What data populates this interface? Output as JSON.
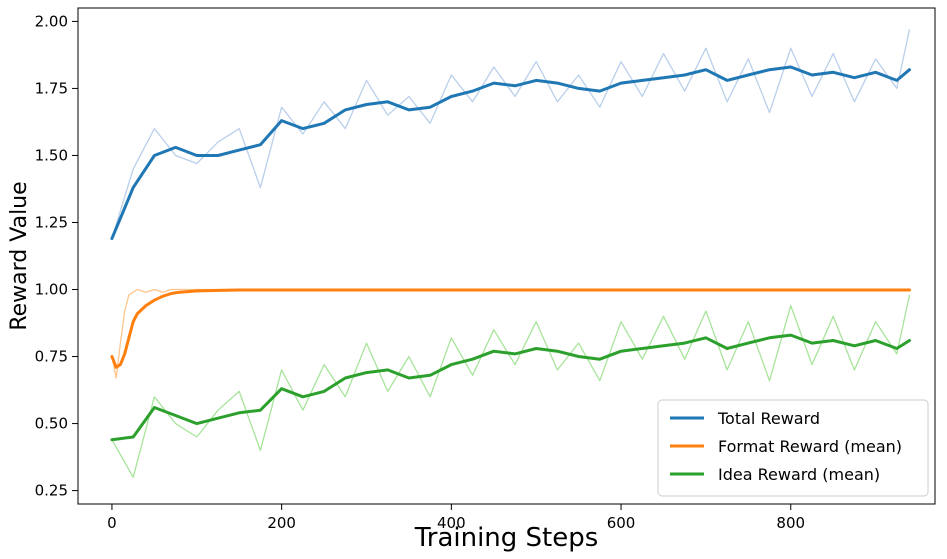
{
  "chart_data": {
    "type": "line",
    "title": "",
    "xlabel": "Training Steps",
    "ylabel": "Reward Value",
    "xlim": [
      -40,
      970
    ],
    "ylim": [
      0.2,
      2.05
    ],
    "xticks": [
      0,
      200,
      400,
      600,
      800
    ],
    "yticks": [
      0.25,
      0.5,
      0.75,
      1.0,
      1.25,
      1.5,
      1.75,
      2.0
    ],
    "xtick_labels": [
      "0",
      "200",
      "400",
      "600",
      "800"
    ],
    "ytick_labels": [
      "0.25",
      "0.50",
      "0.75",
      "1.00",
      "1.25",
      "1.50",
      "1.75",
      "2.00"
    ],
    "grid": false,
    "legend_position": "lower-right",
    "series": [
      {
        "name": "Total Reward",
        "color": "#1f77b4",
        "raw_color": "#aec7e8",
        "x": [
          0,
          25,
          50,
          75,
          100,
          125,
          150,
          175,
          200,
          225,
          250,
          275,
          300,
          325,
          350,
          375,
          400,
          425,
          450,
          475,
          500,
          525,
          550,
          575,
          600,
          625,
          650,
          675,
          700,
          725,
          750,
          775,
          800,
          825,
          850,
          875,
          900,
          925,
          940
        ],
        "smooth": [
          1.19,
          1.38,
          1.5,
          1.53,
          1.5,
          1.5,
          1.52,
          1.54,
          1.63,
          1.6,
          1.62,
          1.67,
          1.69,
          1.7,
          1.67,
          1.68,
          1.72,
          1.74,
          1.77,
          1.76,
          1.78,
          1.77,
          1.75,
          1.74,
          1.77,
          1.78,
          1.79,
          1.8,
          1.82,
          1.78,
          1.8,
          1.82,
          1.83,
          1.8,
          1.81,
          1.79,
          1.81,
          1.78,
          1.82
        ],
        "raw": [
          1.19,
          1.45,
          1.6,
          1.5,
          1.47,
          1.55,
          1.6,
          1.38,
          1.68,
          1.58,
          1.7,
          1.6,
          1.78,
          1.65,
          1.72,
          1.62,
          1.8,
          1.7,
          1.83,
          1.72,
          1.85,
          1.7,
          1.8,
          1.68,
          1.85,
          1.72,
          1.88,
          1.74,
          1.9,
          1.7,
          1.86,
          1.66,
          1.9,
          1.72,
          1.88,
          1.7,
          1.86,
          1.75,
          1.97
        ]
      },
      {
        "name": "Format Reward (mean)",
        "color": "#ff7f0e",
        "raw_color": "#ffbb78",
        "x": [
          0,
          5,
          10,
          15,
          20,
          25,
          30,
          40,
          50,
          60,
          70,
          80,
          100,
          150,
          200,
          300,
          400,
          500,
          600,
          700,
          800,
          900,
          940
        ],
        "smooth": [
          0.75,
          0.71,
          0.72,
          0.76,
          0.82,
          0.88,
          0.91,
          0.94,
          0.96,
          0.975,
          0.985,
          0.99,
          0.995,
          0.998,
          0.998,
          0.998,
          0.998,
          0.998,
          0.998,
          0.998,
          0.998,
          0.998,
          0.998
        ],
        "raw": [
          0.75,
          0.67,
          0.8,
          0.92,
          0.98,
          0.99,
          1.0,
          0.99,
          1.0,
          0.99,
          1.0,
          1.0,
          1.0,
          1.0,
          1.0,
          1.0,
          1.0,
          1.0,
          1.0,
          1.0,
          1.0,
          1.0,
          1.0
        ]
      },
      {
        "name": "Idea Reward (mean)",
        "color": "#2ca02c",
        "raw_color": "#98df8a",
        "x": [
          0,
          25,
          50,
          75,
          100,
          125,
          150,
          175,
          200,
          225,
          250,
          275,
          300,
          325,
          350,
          375,
          400,
          425,
          450,
          475,
          500,
          525,
          550,
          575,
          600,
          625,
          650,
          675,
          700,
          725,
          750,
          775,
          800,
          825,
          850,
          875,
          900,
          925,
          940
        ],
        "smooth": [
          0.44,
          0.45,
          0.56,
          0.53,
          0.5,
          0.52,
          0.54,
          0.55,
          0.63,
          0.6,
          0.62,
          0.67,
          0.69,
          0.7,
          0.67,
          0.68,
          0.72,
          0.74,
          0.77,
          0.76,
          0.78,
          0.77,
          0.75,
          0.74,
          0.77,
          0.78,
          0.79,
          0.8,
          0.82,
          0.78,
          0.8,
          0.82,
          0.83,
          0.8,
          0.81,
          0.79,
          0.81,
          0.78,
          0.81
        ],
        "raw": [
          0.44,
          0.3,
          0.6,
          0.5,
          0.45,
          0.55,
          0.62,
          0.4,
          0.7,
          0.55,
          0.72,
          0.6,
          0.8,
          0.62,
          0.75,
          0.6,
          0.82,
          0.68,
          0.85,
          0.72,
          0.88,
          0.7,
          0.8,
          0.66,
          0.88,
          0.74,
          0.9,
          0.74,
          0.92,
          0.7,
          0.88,
          0.66,
          0.94,
          0.72,
          0.9,
          0.7,
          0.88,
          0.76,
          0.98
        ]
      }
    ]
  }
}
